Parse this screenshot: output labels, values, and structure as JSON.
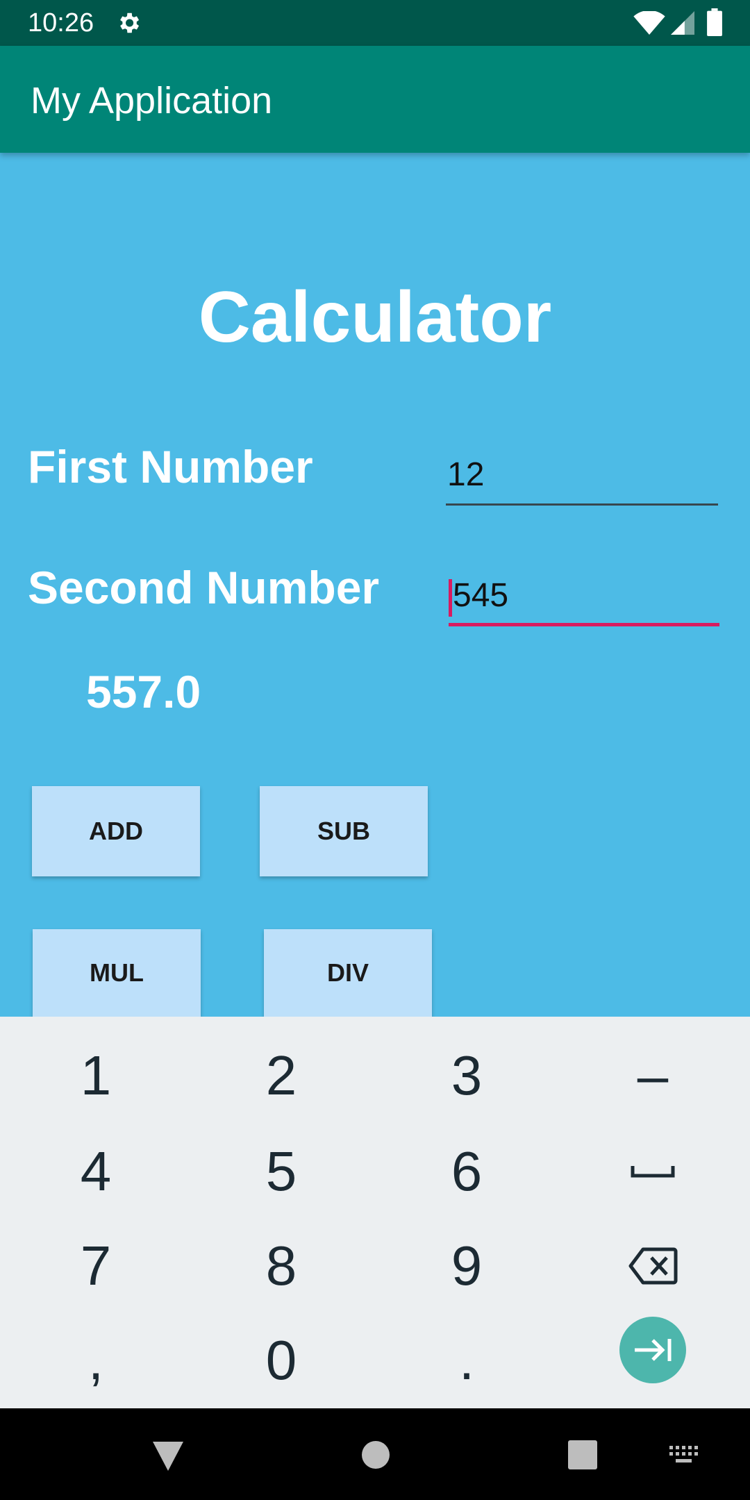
{
  "status_bar": {
    "time": "10:26",
    "icons": [
      "gear-icon",
      "wifi-icon",
      "signal-icon",
      "battery-icon"
    ]
  },
  "app_bar": {
    "title": "My Application"
  },
  "main": {
    "title": "Calculator",
    "first_label": "First Number",
    "first_value": "12",
    "second_label": "Second Number",
    "second_value": "545",
    "result": "557.0",
    "buttons": {
      "add": "ADD",
      "sub": "SUB",
      "mul": "MUL",
      "div": "DIV"
    }
  },
  "keyboard": {
    "keys": [
      "1",
      "2",
      "3",
      "–",
      "4",
      "5",
      "6",
      "",
      "7",
      "8",
      "9",
      "",
      ",",
      "0",
      ".",
      ""
    ],
    "special": [
      "space-icon",
      "backspace-icon",
      "next-field-icon"
    ]
  },
  "nav_bar": {
    "icons": [
      "back-icon",
      "home-icon",
      "recents-icon",
      "keyboard-icon"
    ]
  },
  "colors": {
    "background": "#4dbbe6",
    "app_bar": "#008577",
    "status_bar": "#00574b",
    "accent": "#d81b60",
    "button": "#bde0fa",
    "keyboard": "#eceff1",
    "go_key": "#4db6ac"
  }
}
